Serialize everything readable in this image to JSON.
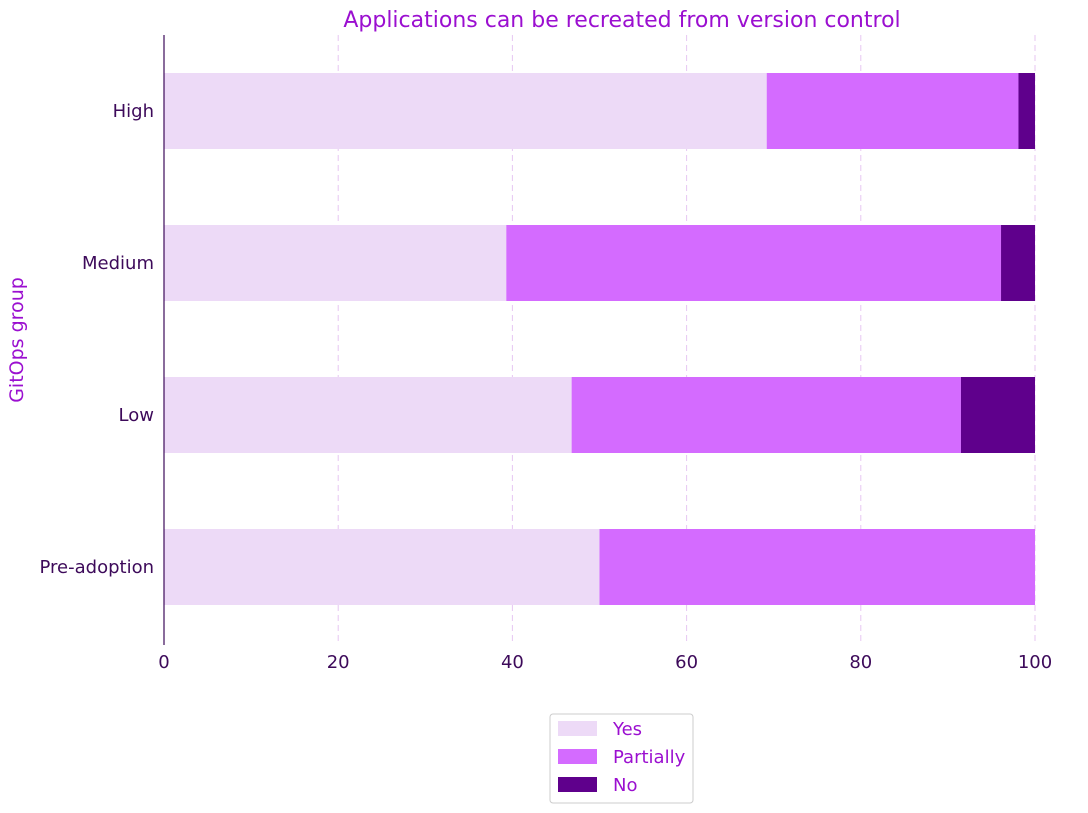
{
  "chart_data": {
    "type": "bar",
    "orientation": "horizontal",
    "stacked": true,
    "title": "Applications can be recreated from version control",
    "xlabel": "",
    "ylabel": "GitOps group",
    "categories": [
      "High",
      "Medium",
      "Low",
      "Pre-adoption"
    ],
    "xlim": [
      0,
      100
    ],
    "xticks": [
      "0",
      "20",
      "40",
      "60",
      "80",
      "100"
    ],
    "grid": "vertical dashed",
    "legend_position": "bottom-center",
    "series": [
      {
        "name": "Yes",
        "color": "#eddaf7",
        "values": [
          69.2,
          39.3,
          46.8,
          50.0
        ]
      },
      {
        "name": "Partially",
        "color": "#d46bff",
        "values": [
          28.9,
          56.8,
          44.7,
          50.0
        ]
      },
      {
        "name": "No",
        "color": "#5f008c",
        "values": [
          1.9,
          3.9,
          8.5,
          0.0
        ]
      }
    ]
  }
}
